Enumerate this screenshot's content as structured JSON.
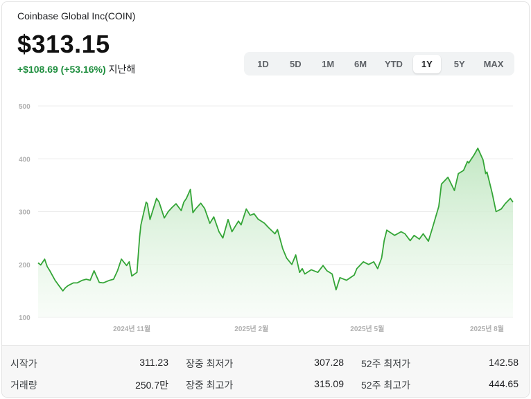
{
  "header": {
    "stock_name": "Coinbase Global Inc(COIN)",
    "price": "$313.15",
    "change": "+$108.69 (+53.16%)",
    "period_label": "지난해"
  },
  "range_tabs": [
    {
      "label": "1D",
      "active": false
    },
    {
      "label": "5D",
      "active": false
    },
    {
      "label": "1M",
      "active": false
    },
    {
      "label": "6M",
      "active": false
    },
    {
      "label": "YTD",
      "active": false
    },
    {
      "label": "1Y",
      "active": true
    },
    {
      "label": "5Y",
      "active": false
    },
    {
      "label": "MAX",
      "active": false
    }
  ],
  "stats": {
    "open_label": "시작가",
    "open_value": "311.23",
    "volume_label": "거래량",
    "volume_value": "250.7만",
    "day_low_label": "장중 최저가",
    "day_low_value": "307.28",
    "day_high_label": "장중 최고가",
    "day_high_value": "315.09",
    "wk52_low_label": "52주 최저가",
    "wk52_low_value": "142.58",
    "wk52_high_label": "52주 최고가",
    "wk52_high_value": "444.65"
  },
  "colors": {
    "line": "#34a537",
    "fill_top": "#bfe6c0",
    "fill_bottom": "#f4fbf4",
    "grid": "#ececec",
    "tick": "#b0b0b0"
  },
  "chart_data": {
    "type": "area",
    "title": "",
    "xlabel": "",
    "ylabel": "",
    "ylim": [
      100,
      500
    ],
    "yticks": [
      100,
      200,
      300,
      400,
      500
    ],
    "grid": true,
    "x_start": "2024-08-21",
    "x_end": "2025-08-21",
    "xticks": [
      {
        "label": "2024년 11월",
        "date": "2024-11-01"
      },
      {
        "label": "2025년 2월",
        "date": "2025-02-01"
      },
      {
        "label": "2025년 5월",
        "date": "2025-05-01"
      },
      {
        "label": "2025년 8월",
        "date": "2025-08-01"
      }
    ],
    "series": [
      {
        "x": [
          "2024-08-21",
          "2024-08-23",
          "2024-08-26",
          "2024-08-28",
          "2024-08-30",
          "2024-09-03",
          "2024-09-06",
          "2024-09-09",
          "2024-09-11",
          "2024-09-13",
          "2024-09-17",
          "2024-09-20",
          "2024-09-24",
          "2024-09-27",
          "2024-09-30",
          "2024-10-03",
          "2024-10-07",
          "2024-10-10",
          "2024-10-15",
          "2024-10-18",
          "2024-10-21",
          "2024-10-24",
          "2024-10-28",
          "2024-10-30",
          "2024-11-01",
          "2024-11-05",
          "2024-11-07",
          "2024-11-08",
          "2024-11-12",
          "2024-11-13",
          "2024-11-15",
          "2024-11-20",
          "2024-11-22",
          "2024-11-26",
          "2024-11-29",
          "2024-12-02",
          "2024-12-05",
          "2024-12-09",
          "2024-12-11",
          "2024-12-13",
          "2024-12-16",
          "2024-12-18",
          "2024-12-20",
          "2024-12-24",
          "2024-12-27",
          "2024-12-31",
          "2025-01-03",
          "2025-01-07",
          "2025-01-10",
          "2025-01-14",
          "2025-01-17",
          "2025-01-22",
          "2025-01-24",
          "2025-01-28",
          "2025-01-31",
          "2025-02-03",
          "2025-02-06",
          "2025-02-11",
          "2025-02-14",
          "2025-02-19",
          "2025-02-21",
          "2025-02-25",
          "2025-02-28",
          "2025-03-04",
          "2025-03-07",
          "2025-03-10",
          "2025-03-12",
          "2025-03-14",
          "2025-03-19",
          "2025-03-24",
          "2025-03-28",
          "2025-03-31",
          "2025-04-04",
          "2025-04-07",
          "2025-04-10",
          "2025-04-15",
          "2025-04-21",
          "2025-04-23",
          "2025-04-28",
          "2025-05-02",
          "2025-05-06",
          "2025-05-09",
          "2025-05-12",
          "2025-05-14",
          "2025-05-16",
          "2025-05-19",
          "2025-05-22",
          "2025-05-27",
          "2025-05-30",
          "2025-06-03",
          "2025-06-06",
          "2025-06-10",
          "2025-06-13",
          "2025-06-17",
          "2025-06-20",
          "2025-06-25",
          "2025-06-27",
          "2025-07-02",
          "2025-07-07",
          "2025-07-10",
          "2025-07-14",
          "2025-07-17",
          "2025-07-18",
          "2025-07-22",
          "2025-07-25",
          "2025-07-29",
          "2025-07-31",
          "2025-08-01",
          "2025-08-05",
          "2025-08-08",
          "2025-08-12",
          "2025-08-15",
          "2025-08-19",
          "2025-08-21"
        ],
        "values": [
          203,
          199,
          210,
          196,
          188,
          170,
          160,
          150,
          156,
          160,
          165,
          165,
          170,
          172,
          170,
          188,
          166,
          165,
          170,
          172,
          188,
          210,
          198,
          205,
          178,
          185,
          252,
          275,
          318,
          315,
          285,
          325,
          318,
          288,
          300,
          308,
          315,
          302,
          318,
          325,
          342,
          298,
          305,
          316,
          306,
          278,
          290,
          262,
          250,
          285,
          262,
          282,
          275,
          305,
          293,
          296,
          286,
          278,
          270,
          258,
          266,
          230,
          212,
          200,
          218,
          185,
          192,
          182,
          190,
          185,
          198,
          188,
          182,
          152,
          175,
          170,
          180,
          192,
          205,
          200,
          205,
          192,
          212,
          245,
          265,
          260,
          255,
          262,
          258,
          245,
          255,
          248,
          258,
          244,
          268,
          310,
          352,
          365,
          340,
          372,
          378,
          395,
          392,
          407,
          420,
          398,
          372,
          375,
          335,
          300,
          305,
          315,
          325,
          318
        ]
      }
    ]
  }
}
